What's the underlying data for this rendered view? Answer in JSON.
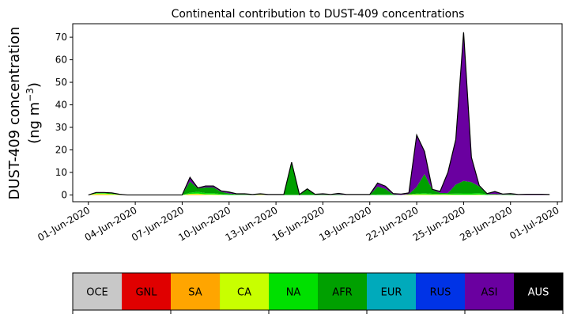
{
  "chart_data": {
    "type": "area",
    "title": "Continental contribution to DUST-409 concentrations",
    "ylabel_line1": "DUST-409 concentration",
    "ylabel_line2_base": "(ng m",
    "ylabel_line2_sup": "−3",
    "ylabel_line2_end": ")",
    "xlabel": "",
    "ylim": [
      -3,
      76
    ],
    "yticks": [
      0,
      10,
      20,
      30,
      40,
      50,
      60,
      70
    ],
    "x_start": "2020-06-01",
    "x_end": "2020-06-30",
    "xlim_days": [
      -1,
      30.3
    ],
    "xticks": [
      {
        "day": 0,
        "label": "01-Jun-2020"
      },
      {
        "day": 3,
        "label": "04-Jun-2020"
      },
      {
        "day": 6,
        "label": "07-Jun-2020"
      },
      {
        "day": 9,
        "label": "10-Jun-2020"
      },
      {
        "day": 12,
        "label": "13-Jun-2020"
      },
      {
        "day": 15,
        "label": "16-Jun-2020"
      },
      {
        "day": 18,
        "label": "19-Jun-2020"
      },
      {
        "day": 21,
        "label": "22-Jun-2020"
      },
      {
        "day": 24,
        "label": "25-Jun-2020"
      },
      {
        "day": 27,
        "label": "28-Jun-2020"
      },
      {
        "day": 30,
        "label": "01-Jul-2020"
      }
    ],
    "x_days": [
      0,
      0.5,
      1,
      1.5,
      2,
      2.5,
      3,
      3.5,
      4,
      4.5,
      5,
      5.5,
      6,
      6.5,
      7,
      7.5,
      8,
      8.5,
      9,
      9.5,
      10,
      10.5,
      11,
      11.5,
      12,
      12.5,
      13,
      13.5,
      14,
      14.5,
      15,
      15.5,
      16,
      16.5,
      17,
      17.5,
      18,
      18.5,
      19,
      19.5,
      20,
      20.5,
      21,
      21.5,
      22,
      22.5,
      23,
      23.5,
      24,
      24.5,
      25,
      25.5,
      26,
      26.5,
      27,
      27.5,
      28,
      28.5,
      29,
      29.5
    ],
    "series": [
      {
        "name": "OCE",
        "color": "#c8c8c8",
        "values": [
          0,
          0,
          0,
          0,
          0,
          0,
          0,
          0,
          0,
          0,
          0,
          0,
          0,
          0,
          0,
          0,
          0,
          0,
          0,
          0,
          0,
          0,
          0,
          0,
          0,
          0,
          0,
          0,
          0,
          0,
          0,
          0,
          0,
          0,
          0,
          0,
          0,
          0,
          0,
          0,
          0,
          0,
          0,
          0,
          0,
          0,
          0,
          0,
          0,
          0,
          0,
          0,
          0,
          0,
          0,
          0,
          0,
          0,
          0,
          0
        ]
      },
      {
        "name": "GNL",
        "color": "#e00000",
        "values": [
          0,
          0,
          0,
          0,
          0,
          0,
          0,
          0,
          0,
          0,
          0,
          0,
          0,
          0,
          0,
          0,
          0,
          0,
          0,
          0,
          0,
          0,
          0,
          0,
          0,
          0,
          0,
          0,
          0,
          0,
          0,
          0,
          0,
          0,
          0,
          0,
          0,
          0,
          0,
          0,
          0,
          0,
          0,
          0,
          0,
          0,
          0,
          0,
          0,
          0,
          0,
          0,
          0,
          0,
          0,
          0,
          0,
          0,
          0,
          0
        ]
      },
      {
        "name": "SA",
        "color": "#ffa500",
        "values": [
          0,
          0.3,
          0.2,
          0.1,
          0,
          0,
          0,
          0,
          0,
          0,
          0,
          0,
          0,
          0.2,
          0.2,
          0.1,
          0,
          0,
          0,
          0,
          0,
          0,
          0,
          0,
          0,
          0,
          0,
          0,
          0,
          0,
          0,
          0,
          0,
          0,
          0,
          0,
          0,
          0,
          0,
          0,
          0,
          0,
          0,
          0,
          0,
          0,
          0,
          0,
          0,
          0,
          0,
          0,
          0,
          0,
          0,
          0,
          0,
          0,
          0,
          0
        ]
      },
      {
        "name": "CA",
        "color": "#c8ff00",
        "values": [
          0,
          0.3,
          0.4,
          0.3,
          0.1,
          0,
          0,
          0,
          0,
          0,
          0,
          0,
          0,
          0.3,
          0.4,
          0.2,
          0.3,
          0.1,
          0,
          0,
          0,
          0,
          0.2,
          0,
          0,
          0,
          0,
          0,
          0,
          0,
          0,
          0,
          0,
          0,
          0,
          0,
          0,
          0,
          0,
          0,
          0,
          0.2,
          0.3,
          0.3,
          0.2,
          0.2,
          0.2,
          0.1,
          0.1,
          0.1,
          0.2,
          0,
          0.1,
          0,
          0,
          0,
          0,
          0,
          0,
          0
        ]
      },
      {
        "name": "NA",
        "color": "#00e000",
        "values": [
          0,
          0.2,
          0.2,
          0.2,
          0.1,
          0,
          0,
          0,
          0,
          0,
          0,
          0,
          0,
          0.5,
          0.8,
          0.5,
          0.5,
          0.3,
          0.2,
          0.1,
          0.1,
          0,
          0,
          0,
          0,
          0,
          0,
          0,
          0,
          0,
          0,
          0,
          0,
          0,
          0,
          0,
          0,
          0.2,
          0.2,
          0.2,
          0,
          0,
          0.3,
          0.5,
          0.3,
          0.2,
          0.3,
          0.5,
          0.6,
          0.6,
          0.6,
          0.2,
          0,
          0.1,
          0,
          0,
          0,
          0,
          0,
          0
        ]
      },
      {
        "name": "AFR",
        "color": "#00a000",
        "values": [
          0,
          0.2,
          0.2,
          0.2,
          0.1,
          0,
          0,
          0,
          0,
          0,
          0,
          0,
          0,
          5,
          1.5,
          2.5,
          2.5,
          1,
          0.5,
          0.2,
          0.2,
          0.1,
          0.1,
          0,
          0,
          0,
          14,
          0,
          2.5,
          0.2,
          0.2,
          0.1,
          0.3,
          0,
          0,
          0,
          0,
          3.5,
          2.5,
          0,
          0,
          0.2,
          3,
          8.5,
          1.8,
          0.5,
          0.3,
          4,
          5.5,
          5,
          3,
          0.2,
          0.3,
          0.1,
          0.3,
          0,
          0,
          0,
          0,
          0
        ]
      },
      {
        "name": "EUR",
        "color": "#00aabb",
        "values": [
          0,
          0,
          0,
          0,
          0,
          0,
          0,
          0,
          0,
          0,
          0,
          0,
          0,
          0,
          0,
          0,
          0,
          0,
          0,
          0,
          0,
          0,
          0,
          0,
          0,
          0,
          0,
          0,
          0,
          0,
          0,
          0,
          0,
          0,
          0,
          0,
          0,
          0,
          0,
          0,
          0,
          0,
          0,
          0,
          0,
          0,
          0,
          0,
          0,
          0,
          0,
          0,
          0,
          0,
          0,
          0,
          0,
          0,
          0,
          0
        ]
      },
      {
        "name": "RUS",
        "color": "#0033e6",
        "values": [
          0,
          0,
          0,
          0,
          0,
          0,
          0,
          0,
          0,
          0,
          0,
          0,
          0,
          0,
          0,
          0,
          0,
          0,
          0,
          0,
          0,
          0,
          0,
          0,
          0,
          0,
          0,
          0,
          0,
          0,
          0,
          0,
          0,
          0,
          0,
          0,
          0,
          0,
          0,
          0,
          0,
          0,
          0,
          0,
          0,
          0,
          0,
          0,
          0,
          0,
          0,
          0,
          0,
          0,
          0,
          0,
          0,
          0,
          0,
          0
        ]
      },
      {
        "name": "ASI",
        "color": "#6a00a0",
        "values": [
          0,
          0.1,
          0.1,
          0.1,
          0,
          0,
          0,
          0,
          0,
          0,
          0,
          0,
          0,
          1.8,
          0.2,
          0.7,
          0.7,
          0.4,
          0.6,
          0.2,
          0.2,
          0.1,
          0.2,
          0.2,
          0.2,
          0.2,
          0.5,
          0.2,
          0.2,
          0.1,
          0.3,
          0.1,
          0.4,
          0.2,
          0.2,
          0.2,
          0.2,
          1.6,
          1.2,
          0.4,
          0.4,
          0.5,
          23,
          10,
          0.2,
          0.7,
          9.3,
          20,
          66,
          11,
          0.4,
          0.2,
          1.1,
          0.2,
          0.3,
          0.2,
          0.3,
          0.3,
          0.3,
          0.2
        ]
      },
      {
        "name": "AUS",
        "color": "#000000",
        "values": [
          0,
          0,
          0,
          0,
          0,
          0,
          0,
          0,
          0,
          0,
          0,
          0,
          0,
          0,
          0,
          0,
          0,
          0,
          0,
          0,
          0,
          0,
          0,
          0,
          0,
          0,
          0,
          0,
          0,
          0,
          0,
          0,
          0,
          0,
          0,
          0,
          0,
          0,
          0,
          0,
          0,
          0,
          0,
          0,
          0,
          0,
          0,
          0,
          0,
          0,
          0,
          0,
          0,
          0,
          0,
          0,
          0,
          0,
          0,
          0
        ]
      }
    ]
  }
}
